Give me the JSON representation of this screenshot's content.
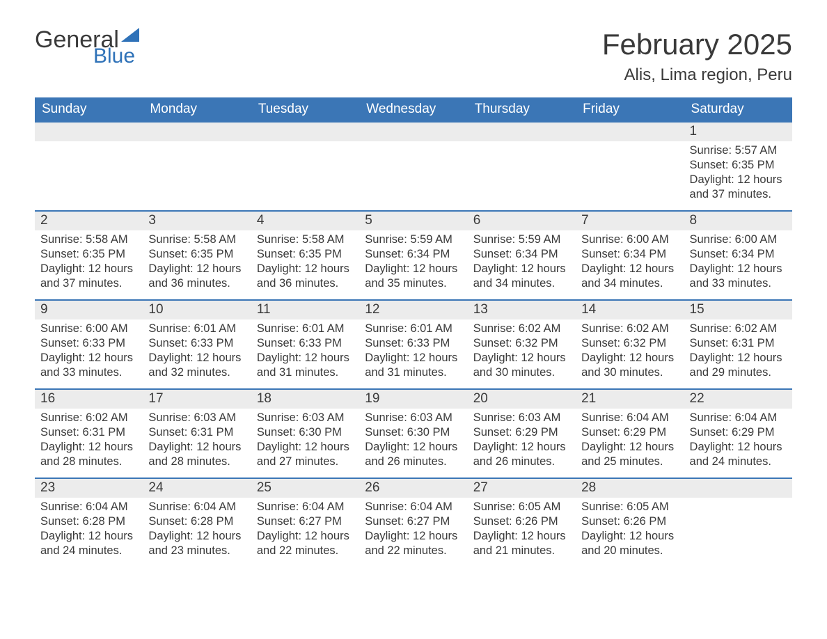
{
  "logo": {
    "text_general": "General",
    "text_blue": "Blue",
    "flag_color": "#2f72b8",
    "text_color_dark": "#3a3a3a"
  },
  "title": "February 2025",
  "location": "Alis, Lima region, Peru",
  "colors": {
    "header_bg": "#3b76b6",
    "header_text": "#ffffff",
    "daynum_bg": "#ececec",
    "text": "#3a3a3a",
    "week_border": "#3b76b6",
    "page_bg": "#ffffff"
  },
  "typography": {
    "title_fontsize": 42,
    "location_fontsize": 24,
    "weekday_fontsize": 19,
    "daynum_fontsize": 19,
    "body_fontsize": 16.5,
    "font_family": "Arial"
  },
  "weekdays": [
    "Sunday",
    "Monday",
    "Tuesday",
    "Wednesday",
    "Thursday",
    "Friday",
    "Saturday"
  ],
  "weeks": [
    [
      null,
      null,
      null,
      null,
      null,
      null,
      {
        "n": "1",
        "sunrise": "Sunrise: 5:57 AM",
        "sunset": "Sunset: 6:35 PM",
        "daylight": "Daylight: 12 hours and 37 minutes."
      }
    ],
    [
      {
        "n": "2",
        "sunrise": "Sunrise: 5:58 AM",
        "sunset": "Sunset: 6:35 PM",
        "daylight": "Daylight: 12 hours and 37 minutes."
      },
      {
        "n": "3",
        "sunrise": "Sunrise: 5:58 AM",
        "sunset": "Sunset: 6:35 PM",
        "daylight": "Daylight: 12 hours and 36 minutes."
      },
      {
        "n": "4",
        "sunrise": "Sunrise: 5:58 AM",
        "sunset": "Sunset: 6:35 PM",
        "daylight": "Daylight: 12 hours and 36 minutes."
      },
      {
        "n": "5",
        "sunrise": "Sunrise: 5:59 AM",
        "sunset": "Sunset: 6:34 PM",
        "daylight": "Daylight: 12 hours and 35 minutes."
      },
      {
        "n": "6",
        "sunrise": "Sunrise: 5:59 AM",
        "sunset": "Sunset: 6:34 PM",
        "daylight": "Daylight: 12 hours and 34 minutes."
      },
      {
        "n": "7",
        "sunrise": "Sunrise: 6:00 AM",
        "sunset": "Sunset: 6:34 PM",
        "daylight": "Daylight: 12 hours and 34 minutes."
      },
      {
        "n": "8",
        "sunrise": "Sunrise: 6:00 AM",
        "sunset": "Sunset: 6:34 PM",
        "daylight": "Daylight: 12 hours and 33 minutes."
      }
    ],
    [
      {
        "n": "9",
        "sunrise": "Sunrise: 6:00 AM",
        "sunset": "Sunset: 6:33 PM",
        "daylight": "Daylight: 12 hours and 33 minutes."
      },
      {
        "n": "10",
        "sunrise": "Sunrise: 6:01 AM",
        "sunset": "Sunset: 6:33 PM",
        "daylight": "Daylight: 12 hours and 32 minutes."
      },
      {
        "n": "11",
        "sunrise": "Sunrise: 6:01 AM",
        "sunset": "Sunset: 6:33 PM",
        "daylight": "Daylight: 12 hours and 31 minutes."
      },
      {
        "n": "12",
        "sunrise": "Sunrise: 6:01 AM",
        "sunset": "Sunset: 6:33 PM",
        "daylight": "Daylight: 12 hours and 31 minutes."
      },
      {
        "n": "13",
        "sunrise": "Sunrise: 6:02 AM",
        "sunset": "Sunset: 6:32 PM",
        "daylight": "Daylight: 12 hours and 30 minutes."
      },
      {
        "n": "14",
        "sunrise": "Sunrise: 6:02 AM",
        "sunset": "Sunset: 6:32 PM",
        "daylight": "Daylight: 12 hours and 30 minutes."
      },
      {
        "n": "15",
        "sunrise": "Sunrise: 6:02 AM",
        "sunset": "Sunset: 6:31 PM",
        "daylight": "Daylight: 12 hours and 29 minutes."
      }
    ],
    [
      {
        "n": "16",
        "sunrise": "Sunrise: 6:02 AM",
        "sunset": "Sunset: 6:31 PM",
        "daylight": "Daylight: 12 hours and 28 minutes."
      },
      {
        "n": "17",
        "sunrise": "Sunrise: 6:03 AM",
        "sunset": "Sunset: 6:31 PM",
        "daylight": "Daylight: 12 hours and 28 minutes."
      },
      {
        "n": "18",
        "sunrise": "Sunrise: 6:03 AM",
        "sunset": "Sunset: 6:30 PM",
        "daylight": "Daylight: 12 hours and 27 minutes."
      },
      {
        "n": "19",
        "sunrise": "Sunrise: 6:03 AM",
        "sunset": "Sunset: 6:30 PM",
        "daylight": "Daylight: 12 hours and 26 minutes."
      },
      {
        "n": "20",
        "sunrise": "Sunrise: 6:03 AM",
        "sunset": "Sunset: 6:29 PM",
        "daylight": "Daylight: 12 hours and 26 minutes."
      },
      {
        "n": "21",
        "sunrise": "Sunrise: 6:04 AM",
        "sunset": "Sunset: 6:29 PM",
        "daylight": "Daylight: 12 hours and 25 minutes."
      },
      {
        "n": "22",
        "sunrise": "Sunrise: 6:04 AM",
        "sunset": "Sunset: 6:29 PM",
        "daylight": "Daylight: 12 hours and 24 minutes."
      }
    ],
    [
      {
        "n": "23",
        "sunrise": "Sunrise: 6:04 AM",
        "sunset": "Sunset: 6:28 PM",
        "daylight": "Daylight: 12 hours and 24 minutes."
      },
      {
        "n": "24",
        "sunrise": "Sunrise: 6:04 AM",
        "sunset": "Sunset: 6:28 PM",
        "daylight": "Daylight: 12 hours and 23 minutes."
      },
      {
        "n": "25",
        "sunrise": "Sunrise: 6:04 AM",
        "sunset": "Sunset: 6:27 PM",
        "daylight": "Daylight: 12 hours and 22 minutes."
      },
      {
        "n": "26",
        "sunrise": "Sunrise: 6:04 AM",
        "sunset": "Sunset: 6:27 PM",
        "daylight": "Daylight: 12 hours and 22 minutes."
      },
      {
        "n": "27",
        "sunrise": "Sunrise: 6:05 AM",
        "sunset": "Sunset: 6:26 PM",
        "daylight": "Daylight: 12 hours and 21 minutes."
      },
      {
        "n": "28",
        "sunrise": "Sunrise: 6:05 AM",
        "sunset": "Sunset: 6:26 PM",
        "daylight": "Daylight: 12 hours and 20 minutes."
      },
      null
    ]
  ]
}
